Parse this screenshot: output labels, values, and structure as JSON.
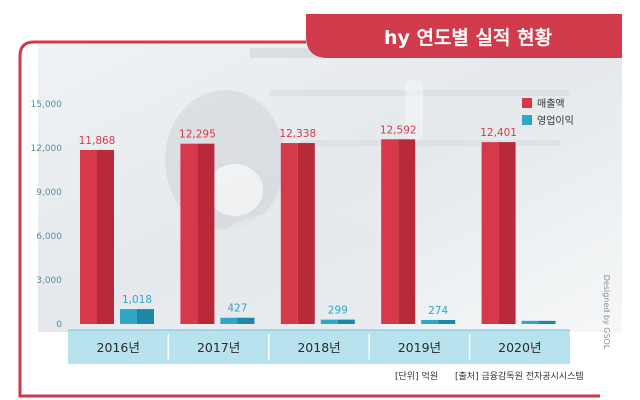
{
  "header": {
    "title": "hy 연도별 실적 현황"
  },
  "footer": {
    "unit_note": "[단위] 억원",
    "source_note": "[출처] 금융감독원 전자공시시스템",
    "credit": "Designed by GSOL"
  },
  "colors": {
    "revenue": "#d8394a",
    "operating_profit": "#2fa8c8",
    "brand_red": "#d03a4a",
    "axis_band": "#b8e3ee"
  },
  "chart_data": {
    "type": "bar",
    "categories": [
      "2016년",
      "2017년",
      "2018년",
      "2019년",
      "2020년"
    ],
    "series": [
      {
        "name": "매출액",
        "values": [
          11868,
          12295,
          12338,
          12592,
          12401
        ]
      },
      {
        "name": "영업이익",
        "values": [
          1018,
          427,
          299,
          274,
          215
        ]
      }
    ],
    "data_labels": [
      [
        "11,868",
        "12,295",
        "12,338",
        "12,592",
        "12,401"
      ],
      [
        "1,018",
        "427",
        "299",
        "274",
        ""
      ]
    ],
    "y_ticks": [
      "0",
      "3,000",
      "6,000",
      "9,000",
      "12,000",
      "15,000"
    ],
    "ylim": [
      0,
      15000
    ],
    "legend": "top-right",
    "grid": false
  }
}
